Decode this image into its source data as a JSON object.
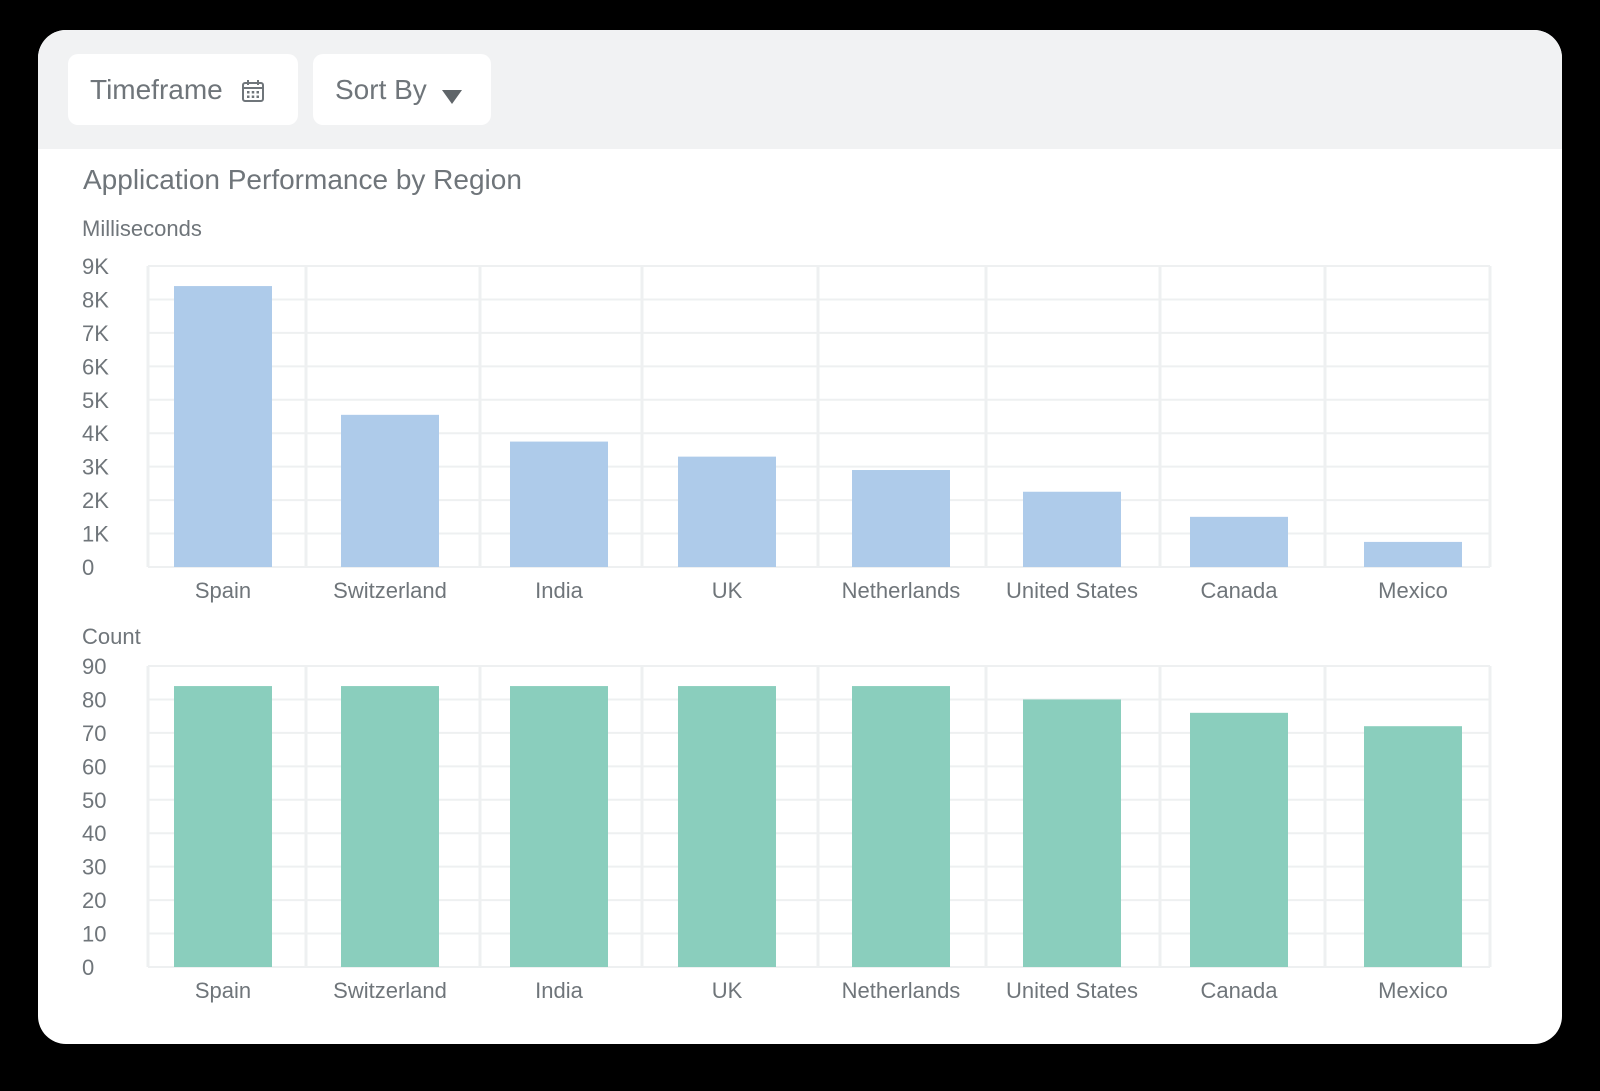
{
  "toolbar": {
    "timeframe_label": "Timeframe",
    "timeframe_icon": "calendar-icon",
    "sortby_label": "Sort By",
    "sortby_icon": "triangle-down-icon"
  },
  "title": "Application Performance by Region",
  "colors": {
    "bar_top": "#aecbea",
    "bar_bottom": "#8acebd",
    "grid": "#eef0f1",
    "text": "#6f757a"
  },
  "chart_data": [
    {
      "type": "bar",
      "title": "Application Performance by Region",
      "ylabel": "Milliseconds",
      "xlabel": "",
      "categories": [
        "Spain",
        "Switzerland",
        "India",
        "UK",
        "Netherlands",
        "United States",
        "Canada",
        "Mexico"
      ],
      "values": [
        8400,
        4550,
        3750,
        3300,
        2900,
        2250,
        1500,
        750
      ],
      "ylim": [
        0,
        9000
      ],
      "yticks": [
        "0",
        "1K",
        "2K",
        "3K",
        "4K",
        "5K",
        "6K",
        "7K",
        "8K",
        "9K"
      ],
      "grid": true
    },
    {
      "type": "bar",
      "title": "",
      "ylabel": "Count",
      "xlabel": "",
      "categories": [
        "Spain",
        "Switzerland",
        "India",
        "UK",
        "Netherlands",
        "United States",
        "Canada",
        "Mexico"
      ],
      "values": [
        84,
        84,
        84,
        84,
        84,
        80,
        76,
        72
      ],
      "ylim": [
        0,
        90
      ],
      "yticks": [
        "0",
        "10",
        "20",
        "30",
        "40",
        "50",
        "60",
        "70",
        "80",
        "90"
      ],
      "grid": true
    }
  ]
}
